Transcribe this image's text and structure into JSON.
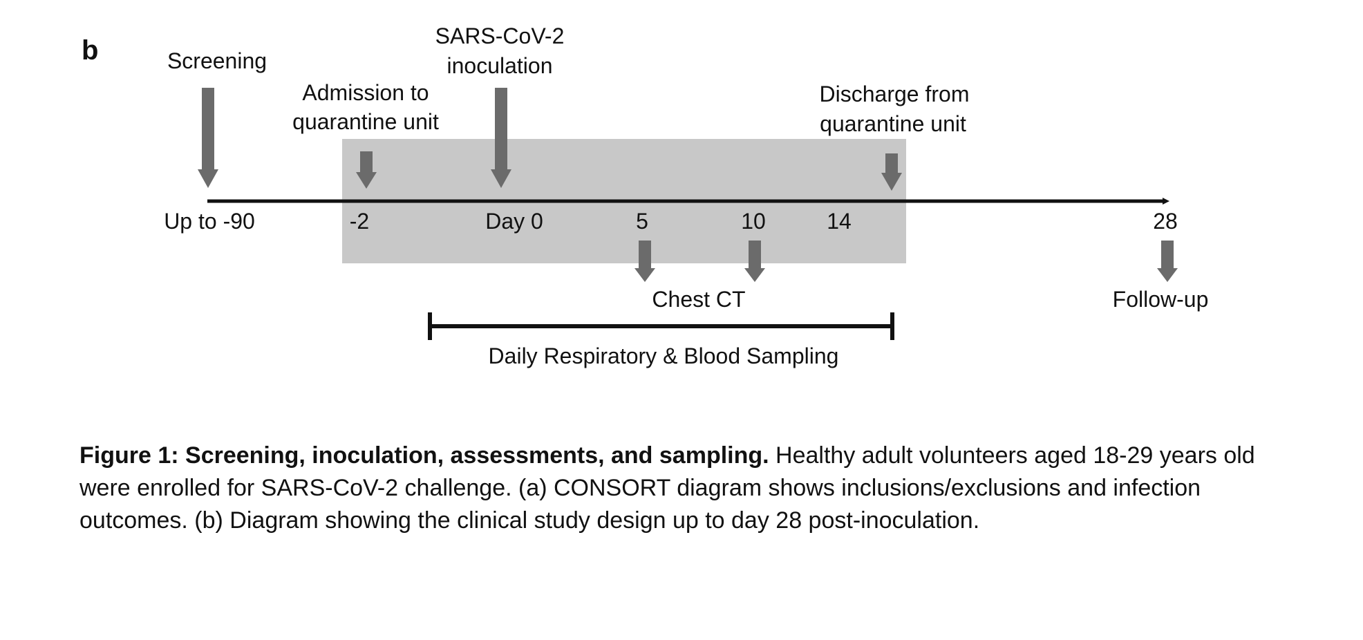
{
  "panel_label": "b",
  "colors": {
    "shade": "#c8c8c8",
    "arrow": "#6b6b6b",
    "line": "#111111"
  },
  "top_events": {
    "screening": "Screening",
    "inoculation": [
      "SARS-CoV-2",
      "inoculation"
    ],
    "admission": [
      "Admission to",
      "quarantine unit"
    ],
    "discharge": [
      "Discharge from",
      "quarantine unit"
    ]
  },
  "ticks": [
    "Up to -90",
    "-2",
    "Day 0",
    "5",
    "10",
    "14",
    "28"
  ],
  "bottom_events": {
    "chest_ct": "Chest CT",
    "follow_up": "Follow-up",
    "sampling": "Daily Respiratory & Blood Sampling"
  },
  "caption": {
    "bold": "Figure 1: Screening, inoculation, assessments, and sampling.",
    "text": " Healthy adult volunteers aged 18-29 years old were enrolled for SARS-CoV-2 challenge. (a) CONSORT diagram shows inclusions/exclusions and infection outcomes. (b) Diagram showing the clinical study design up to day 28 post-inoculation."
  }
}
